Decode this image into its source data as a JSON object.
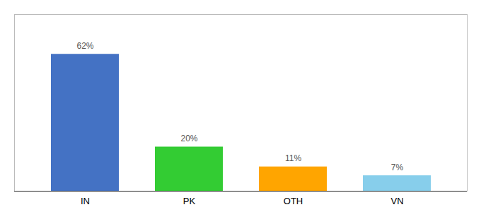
{
  "chart_data": {
    "type": "bar",
    "categories": [
      "IN",
      "PK",
      "OTH",
      "VN"
    ],
    "values": [
      62,
      20,
      11,
      7
    ],
    "value_labels": [
      "62%",
      "20%",
      "11%",
      "7%"
    ],
    "colors": [
      "#4472C4",
      "#33CC33",
      "#FFA500",
      "#87CEEB"
    ],
    "ylim": [
      0,
      80
    ],
    "data_labels": true,
    "tick_labels": "x"
  }
}
